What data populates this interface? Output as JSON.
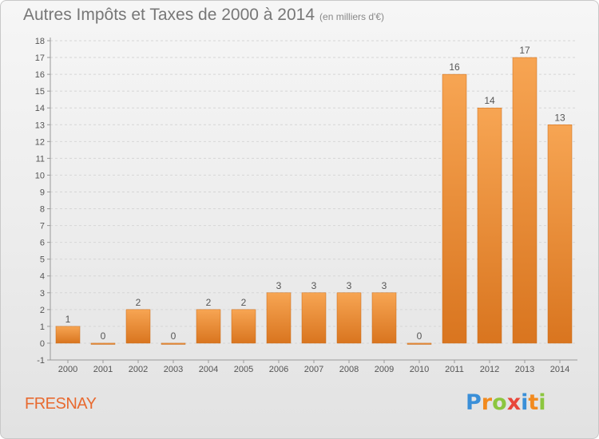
{
  "header": {
    "title": "Autres Impôts et Taxes de 2000 à 2014",
    "subtitle": "(en milliers d'€)"
  },
  "footer": {
    "place": "FRESNAY",
    "brand": "Proxiti",
    "brand_letters": [
      {
        "ch": "P",
        "color": "#3a8fd8"
      },
      {
        "ch": "r",
        "color": "#f28a1e"
      },
      {
        "ch": "o",
        "color": "#8cc63f"
      },
      {
        "ch": "x",
        "color": "#e8463a"
      },
      {
        "ch": "i",
        "color": "#3a8fd8"
      },
      {
        "ch": "t",
        "color": "#f28a1e"
      },
      {
        "ch": "i",
        "color": "#8cc63f"
      }
    ]
  },
  "colors": {
    "bar_light": "#f7a553",
    "bar_dark": "#d9751f",
    "place": "#e86a30",
    "grid": "#d6d6d6",
    "axis": "#999999",
    "text": "#555555"
  },
  "chart_data": {
    "type": "bar",
    "title": "Autres Impôts et Taxes de 2000 à 2014",
    "subtitle": "(en milliers d'€)",
    "categories": [
      "2000",
      "2001",
      "2002",
      "2003",
      "2004",
      "2005",
      "2006",
      "2007",
      "2008",
      "2009",
      "2010",
      "2011",
      "2012",
      "2013",
      "2014"
    ],
    "values": [
      1,
      0,
      2,
      0,
      2,
      2,
      3,
      3,
      3,
      3,
      0,
      16,
      14,
      17,
      13
    ],
    "data_labels": [
      "1",
      "0",
      "2",
      "0",
      "2",
      "2",
      "3",
      "3",
      "3",
      "3",
      "0",
      "16",
      "14",
      "17",
      "13"
    ],
    "ylim": [
      -1,
      18
    ],
    "yticks": [
      -1,
      0,
      1,
      2,
      3,
      4,
      5,
      6,
      7,
      8,
      9,
      10,
      11,
      12,
      13,
      14,
      15,
      16,
      17,
      18
    ],
    "grid": true,
    "legend": "none"
  }
}
